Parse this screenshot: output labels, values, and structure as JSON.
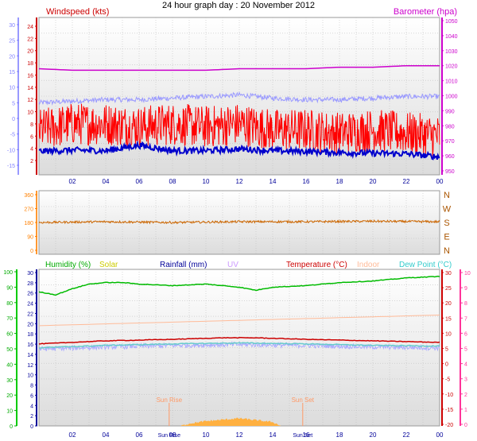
{
  "title": "24 hour graph day : 20 November 2012",
  "chart_data": [
    {
      "type": "line",
      "panel": "wind-baro",
      "labels": {
        "left": "Windspeed (kts)",
        "right": "Barometer (hpa)"
      },
      "x_ticks": [
        "02",
        "04",
        "06",
        "08",
        "10",
        "12",
        "14",
        "16",
        "18",
        "20",
        "22",
        "00"
      ],
      "left_axis_outer": {
        "ticks": [
          30,
          25,
          20,
          15,
          10,
          5,
          0,
          -5,
          -10,
          -15
        ],
        "color": "#8080ff"
      },
      "left_axis_inner": {
        "ticks": [
          24,
          22,
          20,
          18,
          16,
          14,
          12,
          10,
          8,
          6,
          4,
          2
        ],
        "color": "#cc0000"
      },
      "right_axis": {
        "ticks": [
          1050,
          1040,
          1030,
          1020,
          1010,
          1000,
          990,
          980,
          970,
          960,
          950
        ],
        "color": "#cc00cc"
      },
      "series": [
        {
          "name": "Barometer (hpa)",
          "color": "#cc00cc",
          "axis": "right",
          "x": [
            0,
            2,
            4,
            6,
            8,
            10,
            12,
            14,
            16,
            18,
            20,
            22,
            24
          ],
          "values": [
            1018,
            1017,
            1017,
            1017,
            1017,
            1017,
            1018,
            1018,
            1018,
            1019,
            1019,
            1020,
            1020
          ]
        },
        {
          "color": "#9999ff",
          "axis": "left_outer",
          "noise": 0.8,
          "x": [
            0,
            2,
            4,
            6,
            8,
            10,
            12,
            14,
            16,
            18,
            20,
            22,
            24
          ],
          "values": [
            5,
            5.5,
            6,
            6,
            6.5,
            7,
            7.5,
            6.5,
            6,
            6,
            6.5,
            7,
            7
          ]
        },
        {
          "color": "#ff0000",
          "axis": "left_inner",
          "noise": 3.5,
          "x": [
            0,
            2,
            4,
            6,
            8,
            10,
            12,
            14,
            16,
            18,
            20,
            22,
            24
          ],
          "values": [
            7,
            8,
            8,
            7.5,
            8,
            7.5,
            8,
            7,
            7,
            6.5,
            7,
            6.5,
            6
          ]
        },
        {
          "color": "#0000cc",
          "axis": "left_inner",
          "noise": 0.5,
          "x": [
            0,
            2,
            4,
            6,
            8,
            10,
            12,
            14,
            16,
            18,
            20,
            22,
            24
          ],
          "values": [
            3.5,
            3.7,
            3.6,
            4.5,
            3.6,
            3.6,
            3.9,
            3.6,
            3.5,
            3.3,
            3.2,
            3.1,
            2.6
          ]
        }
      ]
    },
    {
      "type": "line",
      "panel": "wind-direction",
      "left_axis": {
        "ticks": [
          360,
          270,
          180,
          90,
          0
        ],
        "color": "#ff8000"
      },
      "right_axis": {
        "ticks": [
          "N",
          "W",
          "S",
          "E",
          "N"
        ],
        "color": "#aa5500"
      },
      "series": [
        {
          "color": "#cc6600",
          "noise": 7,
          "x": [
            0,
            4,
            8,
            12,
            16,
            20,
            24
          ],
          "values": [
            180,
            185,
            180,
            185,
            185,
            188,
            185
          ]
        }
      ]
    },
    {
      "type": "line",
      "panel": "temp-humidity",
      "labels": {
        "humidity": "Humidity (%)",
        "solar": "Solar",
        "rainfall": "Rainfall (mm)",
        "uv": "UV",
        "temperature": "Temperature (°C)",
        "indoor": "Indoor",
        "dewpoint": "Dew Point (°C)"
      },
      "legend_colors": {
        "humidity": "#00aa00",
        "solar": "#cccc00",
        "rainfall": "#000099",
        "uv": "#cc99ff",
        "temperature": "#cc0000",
        "indoor": "#ffbb99",
        "dewpoint": "#33cccc"
      },
      "humidity_axis": {
        "ticks": [
          100,
          90,
          80,
          70,
          60,
          50,
          40,
          30,
          20,
          10,
          0
        ],
        "color": "#00aa00"
      },
      "solar_axis": {
        "ticks": [
          30,
          28,
          26,
          24,
          22,
          20,
          18,
          16,
          14,
          12,
          10,
          8,
          6,
          4,
          2,
          0
        ],
        "color": "#000099"
      },
      "temp_axis": {
        "ticks": [
          30,
          25,
          20,
          15,
          10,
          5,
          0,
          -5,
          -10,
          -15,
          -20
        ],
        "color": "#cc0000"
      },
      "uv_axis": {
        "ticks": [
          10,
          9,
          8,
          7,
          6,
          5,
          4,
          3,
          2,
          1,
          0
        ],
        "color": "#ff3399"
      },
      "markers": [
        {
          "label": "Sun Rise",
          "x": 7.8
        },
        {
          "label": "Sun Set",
          "x": 15.8
        }
      ],
      "extra_tick_labels": [
        "Sun Rise",
        "Sun Set"
      ],
      "series": [
        {
          "name": "Humidity (%)",
          "color": "#00bb00",
          "axis": "humidity",
          "x": [
            0,
            1,
            1.5,
            2,
            3,
            4,
            5,
            6,
            8,
            10,
            12,
            13,
            14,
            16,
            18,
            20,
            22,
            24
          ],
          "values": [
            87,
            85,
            87,
            89,
            92,
            93,
            93,
            92,
            91,
            92,
            90,
            88,
            90,
            91,
            93,
            94,
            96,
            97
          ]
        },
        {
          "name": "Indoor",
          "color": "#ffbb99",
          "axis": "temp",
          "x": [
            0,
            24
          ],
          "values": [
            12.5,
            16
          ]
        },
        {
          "name": "Temperature (°C)",
          "color": "#cc0000",
          "axis": "temp",
          "x": [
            0,
            4,
            8,
            11,
            13,
            16,
            20,
            24
          ],
          "values": [
            6.5,
            7.5,
            8,
            8.5,
            8.5,
            8,
            7.5,
            7
          ]
        },
        {
          "name": "Dew Point (°C)",
          "color": "#66cccc",
          "axis": "temp",
          "x": [
            0,
            4,
            8,
            12,
            16,
            20,
            24
          ],
          "values": [
            5.2,
            6,
            6.5,
            6.8,
            6.5,
            6,
            5.8
          ]
        },
        {
          "color": "#aaaaff",
          "axis": "temp",
          "noise": 0.8,
          "x": [
            0,
            4,
            8,
            12,
            16,
            20,
            24
          ],
          "values": [
            4.8,
            5.5,
            6,
            6.3,
            6,
            5.5,
            5.2
          ]
        }
      ],
      "solar": {
        "color": "#ffb040",
        "x": [
          8.5,
          9,
          10,
          11,
          12,
          13,
          14,
          14.5
        ],
        "values": [
          0,
          0.5,
          1,
          1.3,
          1.6,
          1.2,
          0.8,
          0
        ]
      }
    }
  ]
}
